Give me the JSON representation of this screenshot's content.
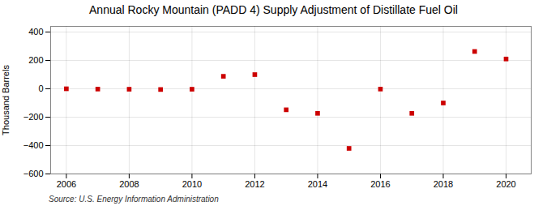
{
  "chart_data": {
    "type": "scatter",
    "title": "Annual Rocky Mountain (PADD 4) Supply Adjustment of Distillate Fuel Oil",
    "ylabel": "Thousand Barrels",
    "source": "Source: U.S. Energy Information Administration",
    "x": [
      2006,
      2007,
      2008,
      2009,
      2010,
      2011,
      2012,
      2013,
      2014,
      2015,
      2016,
      2017,
      2018,
      2019,
      2020
    ],
    "values": [
      0,
      -2,
      -3,
      -5,
      -3,
      88,
      100,
      -148,
      -173,
      -420,
      -2,
      -173,
      -100,
      263,
      210
    ],
    "color": "#cc0000",
    "marker": "square",
    "xlim": [
      2005.5,
      2020.8
    ],
    "ylim": [
      -600,
      440
    ],
    "xticks": [
      2006,
      2008,
      2010,
      2012,
      2014,
      2016,
      2018,
      2020
    ],
    "yticks": [
      -600,
      -400,
      -200,
      0,
      200,
      400
    ],
    "grid": true
  }
}
